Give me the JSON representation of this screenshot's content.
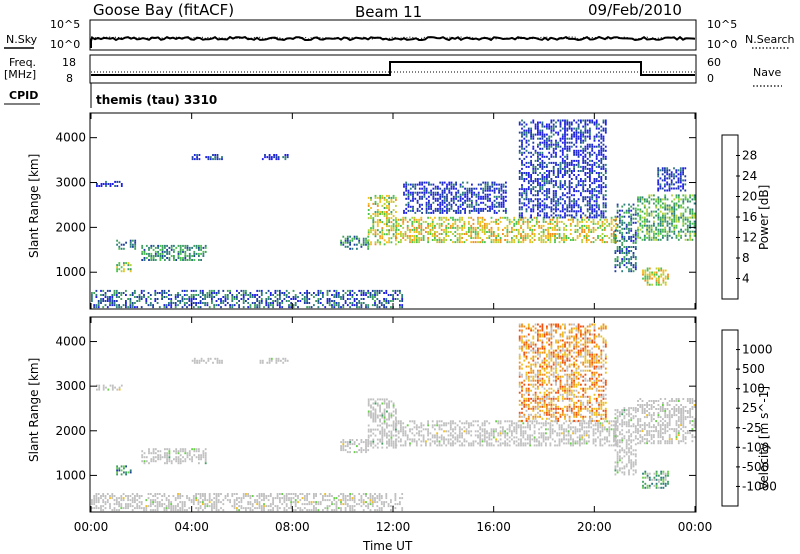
{
  "header": {
    "station": "Goose Bay (fitACF)",
    "beam": "Beam 11",
    "date": "09/Feb/2010"
  },
  "panels": {
    "nsky_label": "N.Sky",
    "nsearch_label": "N.Search",
    "freq_label_1": "Freq.",
    "freq_label_2": "[MHz]",
    "nave_label": "Nave",
    "cpid_label": "CPID",
    "cpid_text": "themis (tau) 3310",
    "nsky_ticks": [
      "10^5",
      "10^0"
    ],
    "nsearch_ticks": [
      "10^5",
      "10^0"
    ],
    "freq_ticks": [
      "18",
      "8"
    ],
    "nave_ticks": [
      "60",
      "0"
    ]
  },
  "colors": {
    "power_scale": [
      "#1e1ee6",
      "#1e3fa0",
      "#2e7d7d",
      "#3fa060",
      "#4ec24e",
      "#b4d23c",
      "#f0c020",
      "#f09020",
      "#f05010",
      "#e01010"
    ],
    "velocity_scale": [
      "#1e3fa0",
      "#2e7d7d",
      "#3fa060",
      "#6ad04a",
      "#c0c0c0",
      "#c0c0c0",
      "#f0c020",
      "#f09020",
      "#f05010",
      "#e01010"
    ]
  },
  "chart_data": [
    {
      "type": "heatmap",
      "name": "power",
      "ylabel": "Slant Range [km]",
      "yticks": [
        "1000",
        "2000",
        "3000",
        "4000"
      ],
      "colorbar_label": "Power [dB]",
      "colorbar_ticks": [
        "4",
        "8",
        "12",
        "16",
        "20",
        "24",
        "28"
      ],
      "xlabel": "Time UT",
      "xticks": [
        "00:00",
        "04:00",
        "08:00",
        "12:00",
        "16:00",
        "20:00",
        "00:00"
      ],
      "xlim_hours": [
        0,
        24
      ],
      "ylim_km": [
        180,
        4550
      ],
      "regions": [
        {
          "t0": 0.0,
          "t1": 12.4,
          "r0": 200,
          "r1": 600,
          "level": 0.2
        },
        {
          "t0": 0.2,
          "t1": 1.2,
          "r0": 2900,
          "r1": 3000,
          "level": 0.1
        },
        {
          "t0": 1.0,
          "t1": 1.6,
          "r0": 1000,
          "r1": 1200,
          "level": 0.5
        },
        {
          "t0": 1.0,
          "t1": 1.8,
          "r0": 1500,
          "r1": 1700,
          "level": 0.3
        },
        {
          "t0": 2.0,
          "t1": 4.6,
          "r0": 1250,
          "r1": 1600,
          "level": 0.3
        },
        {
          "t0": 4.0,
          "t1": 5.2,
          "r0": 3500,
          "r1": 3600,
          "level": 0.1
        },
        {
          "t0": 6.7,
          "t1": 7.8,
          "r0": 3500,
          "r1": 3600,
          "level": 0.1
        },
        {
          "t0": 9.9,
          "t1": 11.0,
          "r0": 1500,
          "r1": 1800,
          "level": 0.3
        },
        {
          "t0": 11.0,
          "t1": 12.1,
          "r0": 1600,
          "r1": 2700,
          "level": 0.55
        },
        {
          "t0": 12.1,
          "t1": 20.9,
          "r0": 1650,
          "r1": 2200,
          "level": 0.6
        },
        {
          "t0": 12.4,
          "t1": 16.5,
          "r0": 2300,
          "r1": 3000,
          "level": 0.1
        },
        {
          "t0": 17.0,
          "t1": 20.5,
          "r0": 2200,
          "r1": 4400,
          "level": 0.1
        },
        {
          "t0": 20.8,
          "t1": 21.7,
          "r0": 1000,
          "r1": 2500,
          "level": 0.25
        },
        {
          "t0": 21.7,
          "t1": 24.0,
          "r0": 1700,
          "r1": 2700,
          "level": 0.4
        },
        {
          "t0": 21.9,
          "t1": 22.9,
          "r0": 700,
          "r1": 1100,
          "level": 0.6
        },
        {
          "t0": 22.5,
          "t1": 23.6,
          "r0": 2800,
          "r1": 3300,
          "level": 0.1
        }
      ]
    },
    {
      "type": "heatmap",
      "name": "velocity",
      "ylabel": "Slant Range [km]",
      "yticks": [
        "1000",
        "2000",
        "3000",
        "4000"
      ],
      "colorbar_label": "Velocity [m s^-1]",
      "colorbar_ticks": [
        "1000",
        "500",
        "100",
        "25",
        "-25",
        "-100",
        "-500",
        "-1000"
      ],
      "xlabel": "Time UT",
      "xticks": [
        "00:00",
        "04:00",
        "08:00",
        "12:00",
        "16:00",
        "20:00",
        "00:00"
      ],
      "xlim_hours": [
        0,
        24
      ],
      "ylim_km": [
        180,
        4550
      ],
      "regions": [
        {
          "t0": 0.0,
          "t1": 12.4,
          "r0": 200,
          "r1": 600,
          "level": 0.5
        },
        {
          "t0": 0.2,
          "t1": 1.2,
          "r0": 2900,
          "r1": 3000,
          "level": 0.45
        },
        {
          "t0": 1.0,
          "t1": 1.6,
          "r0": 1000,
          "r1": 1200,
          "level": 0.2
        },
        {
          "t0": 2.0,
          "t1": 4.6,
          "r0": 1250,
          "r1": 1600,
          "level": 0.45
        },
        {
          "t0": 4.0,
          "t1": 5.2,
          "r0": 3500,
          "r1": 3600,
          "level": 0.45
        },
        {
          "t0": 6.7,
          "t1": 7.8,
          "r0": 3500,
          "r1": 3600,
          "level": 0.45
        },
        {
          "t0": 9.9,
          "t1": 11.0,
          "r0": 1500,
          "r1": 1800,
          "level": 0.45
        },
        {
          "t0": 11.0,
          "t1": 12.1,
          "r0": 1600,
          "r1": 2700,
          "level": 0.45
        },
        {
          "t0": 12.1,
          "t1": 20.9,
          "r0": 1650,
          "r1": 2200,
          "level": 0.48
        },
        {
          "t0": 17.0,
          "t1": 20.5,
          "r0": 2200,
          "r1": 4400,
          "level": 0.7
        },
        {
          "t0": 20.8,
          "t1": 21.7,
          "r0": 1000,
          "r1": 2500,
          "level": 0.45
        },
        {
          "t0": 21.7,
          "t1": 24.0,
          "r0": 1700,
          "r1": 2700,
          "level": 0.47
        },
        {
          "t0": 21.9,
          "t1": 22.9,
          "r0": 700,
          "r1": 1100,
          "level": 0.3
        }
      ]
    }
  ]
}
